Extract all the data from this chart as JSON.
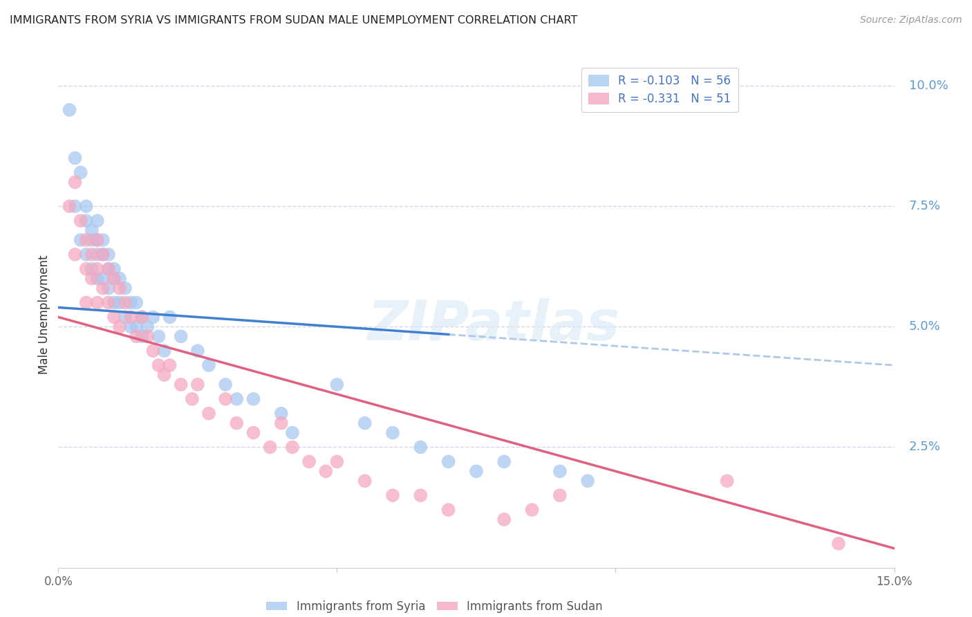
{
  "title": "IMMIGRANTS FROM SYRIA VS IMMIGRANTS FROM SUDAN MALE UNEMPLOYMENT CORRELATION CHART",
  "source": "Source: ZipAtlas.com",
  "ylabel": "Male Unemployment",
  "right_yticks": [
    "10.0%",
    "7.5%",
    "5.0%",
    "2.5%"
  ],
  "right_ytick_vals": [
    0.1,
    0.075,
    0.05,
    0.025
  ],
  "xlim": [
    0.0,
    0.15
  ],
  "ylim": [
    0.0,
    0.105
  ],
  "legend_syria": "R = -0.103   N = 56",
  "legend_sudan": "R = -0.331   N = 51",
  "syria_color": "#a8c8f0",
  "sudan_color": "#f4a8c0",
  "syria_line_color": "#4080d0",
  "sudan_line_color": "#e06080",
  "syria_dash_color": "#b0c8e8",
  "watermark_text": "ZIPatlas",
  "syria_x": [
    0.002,
    0.003,
    0.003,
    0.004,
    0.004,
    0.005,
    0.005,
    0.005,
    0.006,
    0.006,
    0.006,
    0.007,
    0.007,
    0.007,
    0.007,
    0.008,
    0.008,
    0.008,
    0.009,
    0.009,
    0.009,
    0.01,
    0.01,
    0.01,
    0.011,
    0.011,
    0.012,
    0.012,
    0.013,
    0.013,
    0.014,
    0.014,
    0.015,
    0.015,
    0.016,
    0.017,
    0.018,
    0.019,
    0.02,
    0.022,
    0.025,
    0.027,
    0.03,
    0.032,
    0.035,
    0.04,
    0.042,
    0.05,
    0.055,
    0.06,
    0.065,
    0.07,
    0.075,
    0.08,
    0.09,
    0.095
  ],
  "syria_y": [
    0.095,
    0.085,
    0.075,
    0.082,
    0.068,
    0.075,
    0.072,
    0.065,
    0.07,
    0.068,
    0.062,
    0.072,
    0.068,
    0.065,
    0.06,
    0.068,
    0.065,
    0.06,
    0.065,
    0.062,
    0.058,
    0.062,
    0.06,
    0.055,
    0.06,
    0.055,
    0.058,
    0.052,
    0.055,
    0.05,
    0.055,
    0.05,
    0.052,
    0.048,
    0.05,
    0.052,
    0.048,
    0.045,
    0.052,
    0.048,
    0.045,
    0.042,
    0.038,
    0.035,
    0.035,
    0.032,
    0.028,
    0.038,
    0.03,
    0.028,
    0.025,
    0.022,
    0.02,
    0.022,
    0.02,
    0.018
  ],
  "sudan_x": [
    0.002,
    0.003,
    0.003,
    0.004,
    0.005,
    0.005,
    0.005,
    0.006,
    0.006,
    0.007,
    0.007,
    0.007,
    0.008,
    0.008,
    0.009,
    0.009,
    0.01,
    0.01,
    0.011,
    0.011,
    0.012,
    0.013,
    0.014,
    0.015,
    0.016,
    0.017,
    0.018,
    0.019,
    0.02,
    0.022,
    0.024,
    0.025,
    0.027,
    0.03,
    0.032,
    0.035,
    0.038,
    0.04,
    0.042,
    0.045,
    0.048,
    0.05,
    0.055,
    0.06,
    0.065,
    0.07,
    0.08,
    0.085,
    0.09,
    0.12,
    0.14
  ],
  "sudan_y": [
    0.075,
    0.08,
    0.065,
    0.072,
    0.068,
    0.062,
    0.055,
    0.065,
    0.06,
    0.068,
    0.062,
    0.055,
    0.065,
    0.058,
    0.062,
    0.055,
    0.06,
    0.052,
    0.058,
    0.05,
    0.055,
    0.052,
    0.048,
    0.052,
    0.048,
    0.045,
    0.042,
    0.04,
    0.042,
    0.038,
    0.035,
    0.038,
    0.032,
    0.035,
    0.03,
    0.028,
    0.025,
    0.03,
    0.025,
    0.022,
    0.02,
    0.022,
    0.018,
    0.015,
    0.015,
    0.012,
    0.01,
    0.012,
    0.015,
    0.018,
    0.005
  ],
  "grid_color": "#d0d8e8",
  "background_color": "#ffffff",
  "syria_trend_intercept": 0.054,
  "syria_trend_slope": -0.08,
  "sudan_trend_intercept": 0.052,
  "sudan_trend_slope": -0.32
}
